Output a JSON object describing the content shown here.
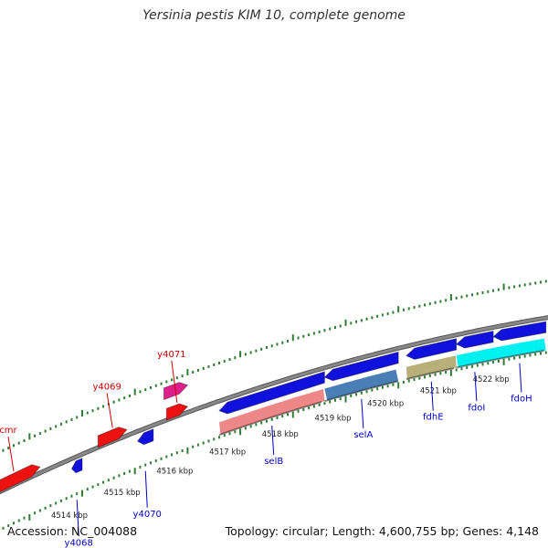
{
  "title": "Yersinia pestis KIM 10, complete genome",
  "footer": {
    "accession": "Accession: NC_004088",
    "topology": "Topology: circular; Length: 4,600,755 bp; Genes: 4,148"
  },
  "colors": {
    "backbone": "#888888",
    "tick": "#2e7d32",
    "forward_label": "#cc0000",
    "reverse_label": "#0000cc",
    "ruler_text": "#222222"
  },
  "scale_labels": [
    {
      "text": "4514 kbp",
      "kbp": 4514
    },
    {
      "text": "4515 kbp",
      "kbp": 4515
    },
    {
      "text": "4516 kbp",
      "kbp": 4516
    },
    {
      "text": "4517 kbp",
      "kbp": 4517
    },
    {
      "text": "4518 kbp",
      "kbp": 4518
    },
    {
      "text": "4519 kbp",
      "kbp": 4519
    },
    {
      "text": "4520 kbp",
      "kbp": 4520
    },
    {
      "text": "4521 kbp",
      "kbp": 4521
    },
    {
      "text": "4522 kbp",
      "kbp": 4522
    }
  ],
  "genes": [
    {
      "label": "cmr",
      "strand": "forward",
      "color": "#ee1111",
      "start_kbp": 4512.2,
      "end_kbp": 4513.2
    },
    {
      "label": "y4068",
      "strand": "reverse",
      "color": "#1111dd",
      "start_kbp": 4513.8,
      "end_kbp": 4514.0
    },
    {
      "label": "y4069",
      "strand": "forward",
      "color": "#ee1111",
      "start_kbp": 4514.3,
      "end_kbp": 4514.85
    },
    {
      "label": "y4070",
      "strand": "reverse",
      "color": "#1111dd",
      "start_kbp": 4515.05,
      "end_kbp": 4515.35
    },
    {
      "label": "y4071",
      "strand": "forward",
      "color": "#ee1111",
      "start_kbp": 4515.6,
      "end_kbp": 4516.0
    },
    {
      "label": "",
      "strand": "forward",
      "color": "#e0208a",
      "start_kbp": 4515.55,
      "end_kbp": 4516.0
    },
    {
      "label": "selB",
      "strand": "reverse",
      "color": "#1111dd",
      "start_kbp": 4516.6,
      "end_kbp": 4518.6
    },
    {
      "label": "selA",
      "strand": "reverse",
      "color": "#1111dd",
      "start_kbp": 4518.6,
      "end_kbp": 4520.0
    },
    {
      "label": "fdhE",
      "strand": "reverse",
      "color": "#1111dd",
      "start_kbp": 4520.15,
      "end_kbp": 4521.1
    },
    {
      "label": "fdoI",
      "strand": "reverse",
      "color": "#1111dd",
      "start_kbp": 4521.1,
      "end_kbp": 4521.8
    },
    {
      "label": "fdoH",
      "strand": "reverse",
      "color": "#1111dd",
      "start_kbp": 4521.8,
      "end_kbp": 4522.8
    }
  ],
  "features": [
    {
      "color": "#ee8888",
      "start_kbp": 4516.6,
      "end_kbp": 4518.6
    },
    {
      "color": "#4a7fb5",
      "start_kbp": 4518.6,
      "end_kbp": 4520.0
    },
    {
      "color": "#b8b07a",
      "start_kbp": 4520.15,
      "end_kbp": 4521.1
    },
    {
      "color": "#00f0f0",
      "start_kbp": 4521.1,
      "end_kbp": 4522.8
    }
  ]
}
